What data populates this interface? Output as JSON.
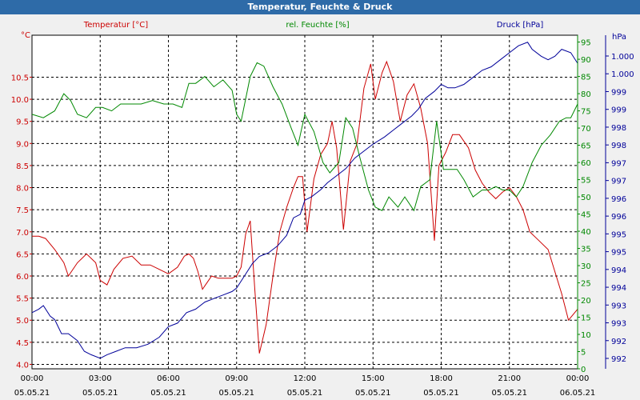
{
  "chart_data": {
    "type": "line",
    "title": "Temperatur, Feuchte & Druck",
    "x_axis": {
      "min_hours": 0,
      "max_hours": 24,
      "ticks": [
        {
          "h": 0,
          "time": "00:00",
          "date": "05.05.21"
        },
        {
          "h": 3,
          "time": "03:00",
          "date": "05.05.21"
        },
        {
          "h": 6,
          "time": "06:00",
          "date": "05.05.21"
        },
        {
          "h": 9,
          "time": "09:00",
          "date": "05.05.21"
        },
        {
          "h": 12,
          "time": "12:00",
          "date": "05.05.21"
        },
        {
          "h": 15,
          "time": "15:00",
          "date": "05.05.21"
        },
        {
          "h": 18,
          "time": "18:00",
          "date": "05.05.21"
        },
        {
          "h": 21,
          "time": "21:00",
          "date": "05.05.21"
        },
        {
          "h": 24,
          "time": "00:00",
          "date": "06.05.21"
        }
      ]
    },
    "axes": {
      "temperature": {
        "label": "Temperatur [°C]",
        "unit": "°C",
        "color": "#cc0000",
        "range": [
          3.9,
          11.45
        ],
        "ticks": [
          "4.0",
          "4.5",
          "5.0",
          "5.5",
          "6.0",
          "6.5",
          "7.0",
          "7.5",
          "8.0",
          "8.5",
          "9.0",
          "9.5",
          "10.0",
          "10.5"
        ]
      },
      "humidity": {
        "label": "rel. Feuchte [%]",
        "unit": "%",
        "color": "#008800",
        "range": [
          0,
          97
        ],
        "ticks": [
          "0",
          "5",
          "10",
          "15",
          "20",
          "25",
          "30",
          "35",
          "40",
          "45",
          "50",
          "55",
          "60",
          "65",
          "70",
          "75",
          "80",
          "85",
          "90",
          "95"
        ]
      },
      "pressure": {
        "label": "Druck [hPa]",
        "unit": "hPa",
        "color": "#000099",
        "range": [
          991.5,
          1001.0
        ],
        "ticks": [
          "992",
          "992",
          "993",
          "993",
          "994",
          "994",
          "995",
          "995",
          "996",
          "996",
          "997",
          "997",
          "998",
          "998",
          "999",
          "999",
          "1.000",
          "1.000"
        ]
      }
    },
    "series": [
      {
        "name": "Temperatur [°C]",
        "axis": "temperature",
        "color": "#cc0000",
        "x": [
          0,
          0.3,
          0.6,
          1.0,
          1.4,
          1.6,
          2.0,
          2.4,
          2.8,
          3.0,
          3.3,
          3.6,
          4.0,
          4.4,
          4.8,
          5.2,
          5.6,
          6.0,
          6.4,
          6.7,
          6.9,
          7.1,
          7.3,
          7.5,
          7.7,
          7.9,
          8.2,
          8.5,
          8.8,
          9.0,
          9.2,
          9.4,
          9.6,
          9.8,
          10.0,
          10.3,
          10.6,
          10.9,
          11.2,
          11.5,
          11.7,
          11.9,
          12.1,
          12.4,
          12.7,
          13.0,
          13.2,
          13.4,
          13.7,
          14.0,
          14.3,
          14.6,
          14.9,
          15.1,
          15.4,
          15.6,
          15.9,
          16.2,
          16.5,
          16.8,
          17.1,
          17.4,
          17.7,
          17.9,
          18.2,
          18.5,
          18.8,
          19.2,
          19.5,
          19.8,
          20.1,
          20.4,
          20.7,
          21.0,
          21.3,
          21.6,
          21.9,
          22.3,
          22.7,
          23.0,
          23.3,
          23.6,
          24.0
        ],
        "values": [
          6.9,
          6.9,
          6.85,
          6.6,
          6.3,
          6.0,
          6.3,
          6.5,
          6.3,
          5.9,
          5.8,
          6.15,
          6.4,
          6.45,
          6.25,
          6.25,
          6.15,
          6.05,
          6.2,
          6.45,
          6.5,
          6.4,
          6.1,
          5.7,
          5.85,
          6.0,
          5.95,
          5.95,
          5.95,
          6.0,
          6.2,
          6.95,
          7.25,
          5.7,
          4.25,
          4.9,
          6.0,
          7.0,
          7.55,
          8.0,
          8.25,
          8.25,
          7.0,
          8.2,
          8.75,
          9.0,
          9.5,
          8.9,
          7.05,
          8.6,
          9.0,
          10.25,
          10.8,
          10.0,
          10.6,
          10.85,
          10.4,
          9.5,
          10.1,
          10.35,
          9.8,
          9.0,
          6.8,
          8.5,
          8.8,
          9.2,
          9.2,
          8.9,
          8.4,
          8.1,
          7.9,
          7.75,
          7.9,
          8.0,
          7.8,
          7.5,
          7.0,
          6.8,
          6.6,
          6.1,
          5.6,
          5.0,
          5.25
        ]
      },
      {
        "name": "rel. Feuchte [%]",
        "axis": "humidity",
        "color": "#008800",
        "x": [
          0,
          0.5,
          1.0,
          1.4,
          1.7,
          2.0,
          2.4,
          2.8,
          3.1,
          3.5,
          3.9,
          4.3,
          4.8,
          5.3,
          5.8,
          6.2,
          6.6,
          6.9,
          7.2,
          7.6,
          8.0,
          8.4,
          8.8,
          9.0,
          9.2,
          9.6,
          9.9,
          10.2,
          10.6,
          11.0,
          11.4,
          11.7,
          12.0,
          12.4,
          12.8,
          13.1,
          13.5,
          13.8,
          14.1,
          14.4,
          14.8,
          15.1,
          15.4,
          15.7,
          16.1,
          16.4,
          16.8,
          17.1,
          17.5,
          17.8,
          18.1,
          18.4,
          18.7,
          19.0,
          19.4,
          19.8,
          20.1,
          20.4,
          20.7,
          21.0,
          21.3,
          21.6,
          22.0,
          22.4,
          22.8,
          23.2,
          23.5,
          23.7,
          24.0
        ],
        "values": [
          74,
          73,
          75,
          80,
          78,
          74,
          73,
          76,
          76,
          75,
          77,
          77,
          77,
          78,
          77,
          77,
          76,
          83,
          83,
          85,
          82,
          84,
          81,
          74,
          72,
          85,
          89,
          88,
          82,
          77,
          70,
          65,
          74,
          69,
          60,
          57,
          60,
          73,
          70,
          62,
          52,
          47,
          46,
          50,
          47,
          50,
          46,
          53,
          55,
          72,
          58,
          58,
          58,
          55,
          50,
          52,
          52,
          53,
          52,
          52,
          50,
          53,
          60,
          65,
          68,
          72,
          73,
          73,
          77
        ]
      },
      {
        "name": "Druck [hPa]",
        "axis": "pressure",
        "color": "#000099",
        "x": [
          0,
          0.3,
          0.5,
          0.8,
          1.0,
          1.3,
          1.6,
          2.0,
          2.3,
          2.6,
          3.0,
          3.3,
          3.7,
          4.1,
          4.6,
          5.1,
          5.6,
          6.0,
          6.4,
          6.8,
          7.2,
          7.6,
          8.0,
          8.4,
          8.8,
          9.0,
          9.3,
          9.7,
          10.0,
          10.4,
          10.8,
          11.2,
          11.5,
          11.8,
          12.0,
          12.3,
          12.7,
          13.0,
          13.4,
          13.8,
          14.2,
          14.6,
          15.0,
          15.5,
          15.9,
          16.3,
          16.7,
          17.0,
          17.3,
          17.7,
          18.0,
          18.3,
          18.6,
          19.0,
          19.4,
          19.8,
          20.2,
          20.6,
          21.0,
          21.4,
          21.8,
          22.0,
          22.4,
          22.7,
          23.0,
          23.3,
          23.7,
          24.0
        ],
        "values": [
          993.1,
          993.2,
          993.3,
          993.0,
          992.9,
          992.5,
          992.5,
          992.3,
          992.0,
          991.9,
          991.8,
          991.9,
          992.0,
          992.1,
          992.1,
          992.2,
          992.4,
          992.7,
          992.8,
          993.1,
          993.2,
          993.4,
          993.5,
          993.6,
          993.7,
          993.8,
          994.1,
          994.5,
          994.7,
          994.8,
          995.0,
          995.3,
          995.8,
          995.9,
          996.3,
          996.4,
          996.6,
          996.8,
          997.0,
          997.2,
          997.5,
          997.7,
          997.9,
          998.1,
          998.3,
          998.5,
          998.7,
          998.9,
          999.2,
          999.4,
          999.6,
          999.5,
          999.5,
          999.6,
          999.8,
          1000.0,
          1000.1,
          1000.3,
          1000.5,
          1000.7,
          1000.8,
          1000.6,
          1000.4,
          1000.3,
          1000.4,
          1000.6,
          1000.5,
          1000.2
        ]
      }
    ]
  }
}
